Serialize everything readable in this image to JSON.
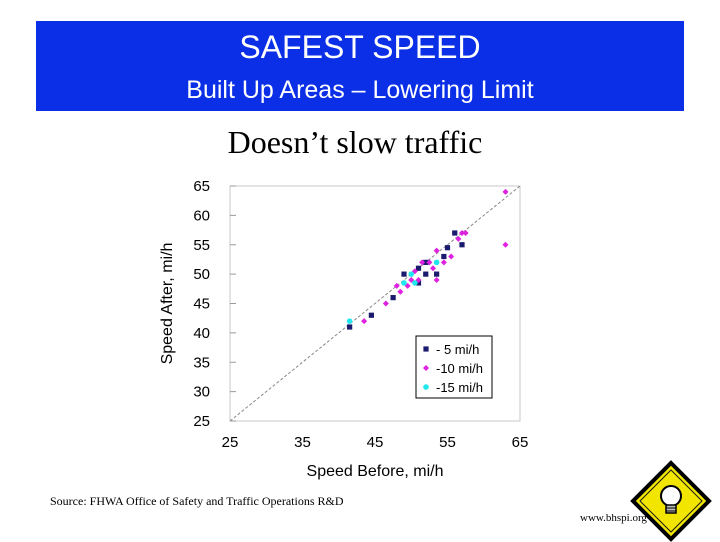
{
  "banner": {
    "title": "SAFEST SPEED",
    "subtitle": "Built Up Areas – Lowering Limit"
  },
  "heading": "Doesn’t slow traffic",
  "source_note": "Source: FHWA Office of Safety and Traffic Operations R&D",
  "website": "www.bhspi.org",
  "colors": {
    "banner": "#0a2fe6",
    "series_5": "#1a1a6e",
    "series_10": "#e020e0",
    "series_15": "#22e6ee"
  },
  "icons": {
    "corner_sign": "lightbulb-sign-icon"
  },
  "chart_data": {
    "type": "scatter",
    "xlabel": "Speed Before, mi/h",
    "ylabel": "Speed After, mi/h",
    "xlim": [
      25,
      65
    ],
    "ylim": [
      25,
      65
    ],
    "x_ticks": [
      25,
      35,
      45,
      55,
      65
    ],
    "y_ticks": [
      25,
      30,
      35,
      40,
      45,
      50,
      55,
      60,
      65
    ],
    "grid": false,
    "reference_line": "y = x (diagonal dashed)",
    "legend_position": "bottom-right",
    "series": [
      {
        "name": "- 5 mi/h",
        "marker": "square",
        "points": [
          [
            41.5,
            41
          ],
          [
            44.5,
            43
          ],
          [
            47.5,
            46
          ],
          [
            49,
            50
          ],
          [
            51,
            51
          ],
          [
            51,
            48.5
          ],
          [
            52,
            52
          ],
          [
            52,
            50
          ],
          [
            53.5,
            50
          ],
          [
            54.5,
            53
          ],
          [
            55,
            54.5
          ],
          [
            56,
            57
          ],
          [
            57,
            55
          ]
        ]
      },
      {
        "name": "-10 mi/h",
        "marker": "diamond",
        "points": [
          [
            43.5,
            42
          ],
          [
            46.5,
            45
          ],
          [
            48,
            48
          ],
          [
            48.5,
            47
          ],
          [
            49.5,
            48
          ],
          [
            50,
            49
          ],
          [
            50.5,
            50.5
          ],
          [
            51,
            49
          ],
          [
            51.5,
            52
          ],
          [
            52.5,
            52
          ],
          [
            53,
            51
          ],
          [
            53.5,
            49
          ],
          [
            53.5,
            54
          ],
          [
            54.5,
            52
          ],
          [
            55.5,
            53
          ],
          [
            56.5,
            56
          ],
          [
            57,
            57
          ],
          [
            57.5,
            57
          ],
          [
            63,
            64
          ],
          [
            63,
            55
          ]
        ]
      },
      {
        "name": "-15 mi/h",
        "marker": "circle",
        "points": [
          [
            41.5,
            42
          ],
          [
            49,
            48.5
          ],
          [
            50,
            50
          ],
          [
            50.5,
            48.5
          ],
          [
            53.5,
            52
          ]
        ]
      }
    ]
  }
}
